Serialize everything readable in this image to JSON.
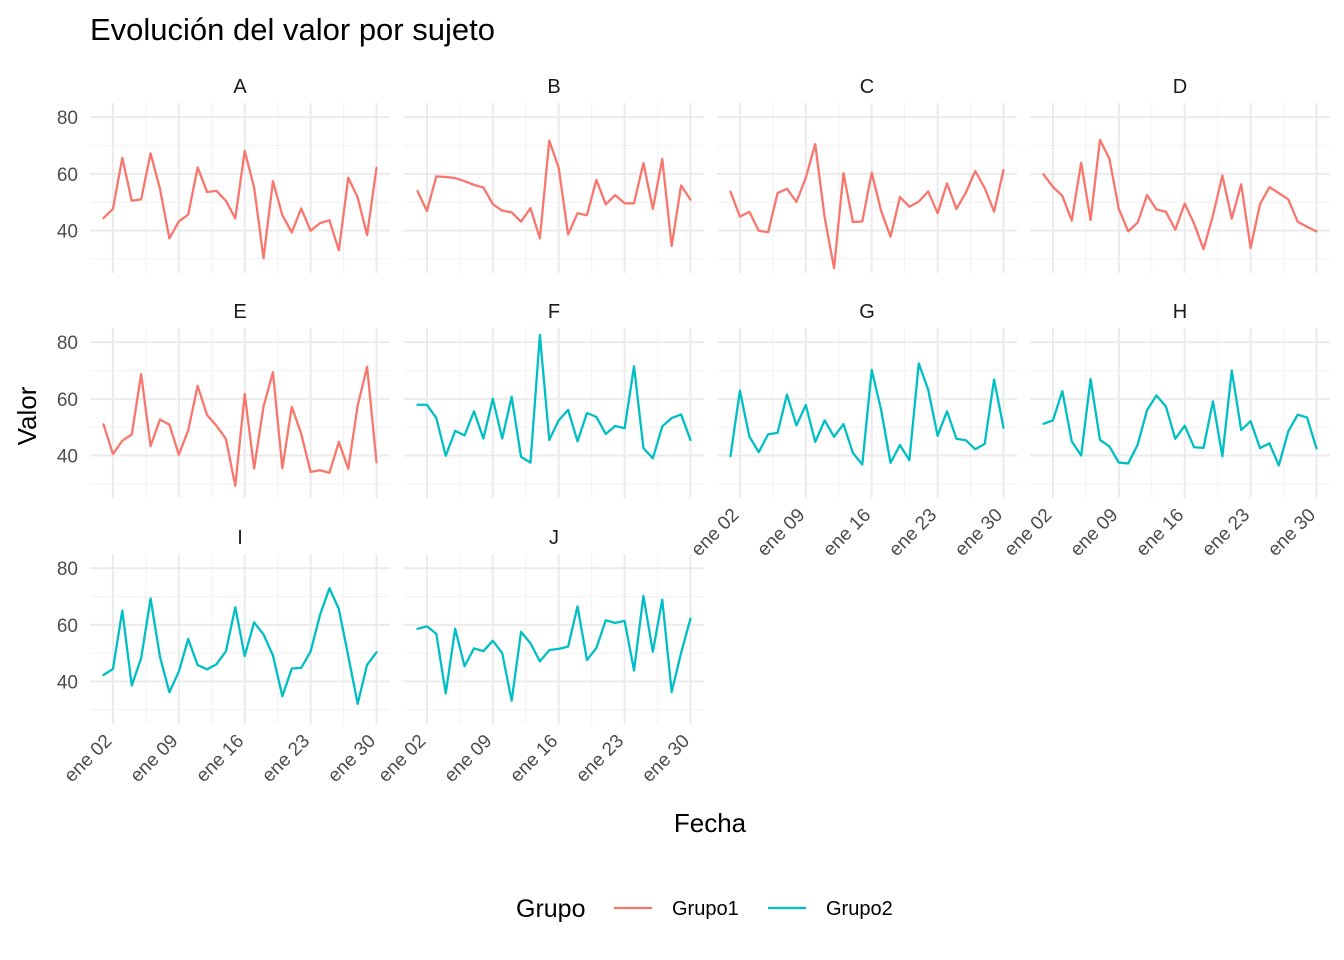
{
  "chart_data": {
    "type": "line",
    "title": "Evolución del valor por sujeto",
    "xlabel": "Fecha",
    "ylabel": "Valor",
    "x": [
      "2024-01-01",
      "2024-01-02",
      "2024-01-03",
      "2024-01-04",
      "2024-01-05",
      "2024-01-06",
      "2024-01-07",
      "2024-01-08",
      "2024-01-09",
      "2024-01-10",
      "2024-01-11",
      "2024-01-12",
      "2024-01-13",
      "2024-01-14",
      "2024-01-15",
      "2024-01-16",
      "2024-01-17",
      "2024-01-18",
      "2024-01-19",
      "2024-01-20",
      "2024-01-21",
      "2024-01-22",
      "2024-01-23",
      "2024-01-24",
      "2024-01-25",
      "2024-01-26",
      "2024-01-27",
      "2024-01-28",
      "2024-01-29",
      "2024-01-30"
    ],
    "x_ticks": [
      "ene 02",
      "ene 09",
      "ene 16",
      "ene 23",
      "ene 30"
    ],
    "y_ticks": [
      40,
      60,
      80
    ],
    "ylim": [
      25,
      85
    ],
    "grid": true,
    "legend": {
      "title": "Grupo",
      "position": "bottom",
      "entries": [
        {
          "name": "Grupo1",
          "color": "#F8766D"
        },
        {
          "name": "Grupo2",
          "color": "#00BFC4"
        }
      ]
    },
    "facets": [
      {
        "label": "A",
        "group": "Grupo1",
        "values": [
          44.4,
          47.6,
          65.6,
          50.5,
          51.0,
          67.2,
          54.7,
          37.2,
          43.2,
          45.6,
          62.3,
          53.6,
          54.0,
          50.5,
          44.3,
          68.1,
          55.2,
          30.2,
          57.4,
          45.4,
          39.3,
          47.8,
          39.9,
          42.6,
          43.6,
          33.0,
          58.6,
          51.7,
          38.4,
          62.1
        ]
      },
      {
        "label": "B",
        "group": "Grupo1",
        "values": [
          53.9,
          46.9,
          59.1,
          58.9,
          58.5,
          57.4,
          56.1,
          55.2,
          49.3,
          47.0,
          46.4,
          43.1,
          47.9,
          37.2,
          71.7,
          62.1,
          38.6,
          46.1,
          45.4,
          57.9,
          49.2,
          52.5,
          49.6,
          49.6,
          63.8,
          47.6,
          65.3,
          34.5,
          55.9,
          50.9
        ]
      },
      {
        "label": "C",
        "group": "Grupo1",
        "values": [
          53.7,
          44.9,
          46.6,
          39.9,
          39.4,
          53.2,
          54.7,
          50.1,
          58.6,
          70.5,
          44.7,
          26.7,
          60.2,
          43.0,
          43.2,
          60.4,
          46.9,
          37.8,
          51.8,
          48.4,
          50.2,
          53.8,
          46.1,
          56.6,
          47.6,
          53.4,
          61.0,
          55.0,
          46.7,
          61.3
        ]
      },
      {
        "label": "D",
        "group": "Grupo1",
        "values": [
          59.8,
          55.4,
          52.2,
          43.5,
          63.9,
          43.7,
          72.0,
          65.3,
          47.6,
          39.7,
          42.8,
          52.5,
          47.4,
          46.6,
          40.3,
          49.5,
          42.4,
          33.4,
          45.3,
          59.4,
          44.2,
          56.3,
          33.8,
          49.3,
          55.3,
          53.2,
          51.0,
          43.1,
          41.3,
          39.7
        ]
      },
      {
        "label": "E",
        "group": "Grupo1",
        "values": [
          51.0,
          40.5,
          45.2,
          47.4,
          68.7,
          43.3,
          52.7,
          50.9,
          40.3,
          48.9,
          64.6,
          54.3,
          50.5,
          45.9,
          29.3,
          61.7,
          35.4,
          57.3,
          69.4,
          35.5,
          57.2,
          47.7,
          34.2,
          34.8,
          33.9,
          44.8,
          35.3,
          57.6,
          71.3,
          37.6
        ]
      },
      {
        "label": "F",
        "group": "Grupo2",
        "values": [
          57.9,
          57.9,
          53.2,
          39.9,
          48.7,
          47.1,
          55.6,
          46.0,
          60.0,
          46.0,
          60.7,
          39.5,
          37.5,
          82.5,
          45.5,
          52.4,
          56.1,
          45.0,
          55.0,
          53.6,
          47.6,
          50.4,
          49.6,
          71.5,
          42.6,
          39.0,
          50.3,
          53.2,
          54.5,
          45.5
        ]
      },
      {
        "label": "G",
        "group": "Grupo2",
        "values": [
          39.8,
          62.9,
          46.7,
          41.2,
          47.5,
          48.0,
          61.5,
          50.6,
          57.8,
          44.8,
          52.4,
          46.6,
          51.1,
          40.9,
          36.8,
          70.2,
          56.1,
          37.4,
          43.7,
          38.3,
          72.5,
          63.2,
          47.0,
          55.6,
          45.9,
          45.4,
          42.2,
          44.1,
          66.8,
          49.8
        ]
      },
      {
        "label": "H",
        "group": "Grupo2",
        "values": [
          51.2,
          52.4,
          62.7,
          45.0,
          40.0,
          67.0,
          45.5,
          43.2,
          37.5,
          37.2,
          43.8,
          56.0,
          61.2,
          57.3,
          45.9,
          50.5,
          42.9,
          42.7,
          59.1,
          39.7,
          70.0,
          49.0,
          52.1,
          42.6,
          44.3,
          36.5,
          48.5,
          54.4,
          53.4,
          42.5
        ]
      },
      {
        "label": "I",
        "group": "Grupo2",
        "values": [
          42.3,
          44.4,
          65.0,
          38.6,
          48.2,
          69.3,
          48.7,
          36.2,
          43.5,
          55.0,
          45.8,
          44.3,
          46.1,
          50.6,
          66.2,
          49.0,
          60.9,
          56.6,
          49.2,
          34.8,
          44.6,
          44.8,
          50.6,
          63.5,
          72.9,
          65.6,
          49.0,
          32.1,
          45.9,
          50.3
        ]
      },
      {
        "label": "J",
        "group": "Grupo2",
        "values": [
          58.6,
          59.5,
          56.8,
          35.8,
          58.6,
          45.4,
          51.7,
          50.7,
          54.4,
          50.0,
          33.2,
          57.5,
          53.5,
          47.1,
          51.1,
          51.5,
          52.3,
          66.5,
          47.6,
          51.8,
          61.6,
          60.7,
          61.4,
          43.9,
          70.2,
          50.5,
          68.9,
          36.3,
          50.1,
          62.2
        ]
      }
    ]
  }
}
